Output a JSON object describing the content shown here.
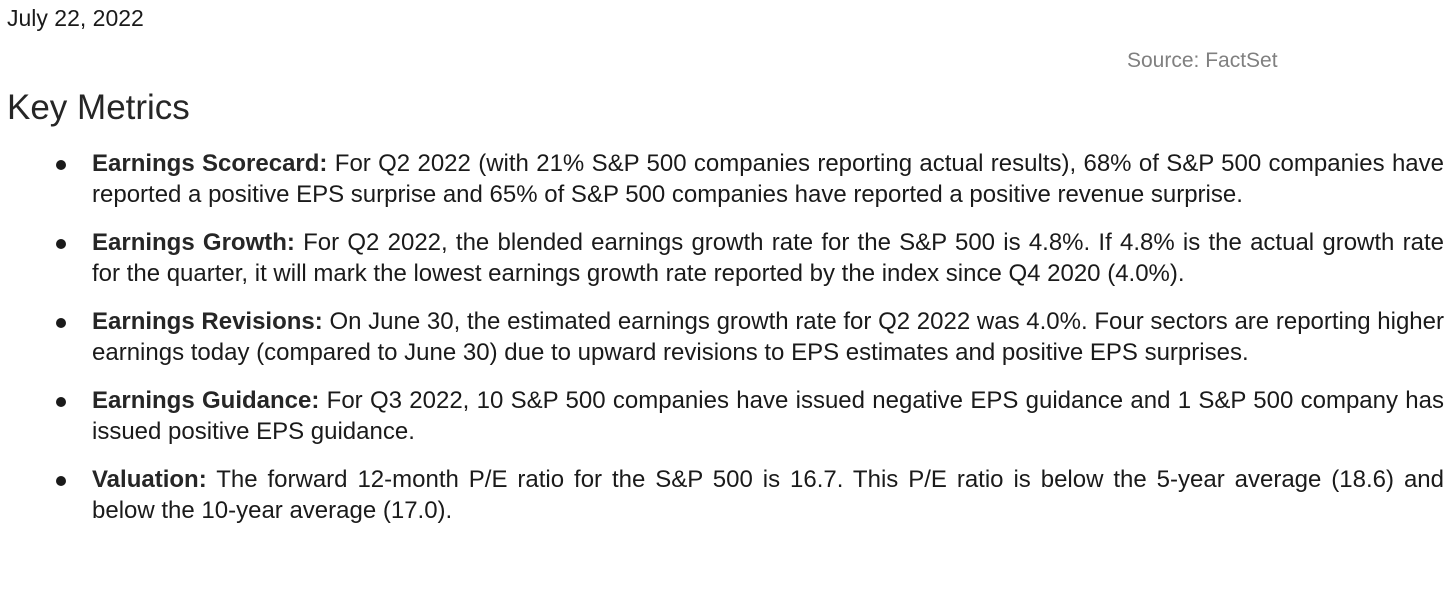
{
  "date": "July 22, 2022",
  "source": "Source: FactSet",
  "heading": "Key Metrics",
  "metrics": [
    {
      "label": "Earnings Scorecard:",
      "text": " For Q2 2022 (with 21% S&P 500 companies reporting actual results), 68% of S&P 500 companies have reported a positive EPS surprise and 65% of S&P 500 companies have reported a positive revenue surprise."
    },
    {
      "label": "Earnings Growth:",
      "text": " For Q2 2022, the blended earnings growth rate for the S&P 500 is 4.8%. If 4.8% is the actual growth rate for the quarter, it will mark the lowest earnings growth rate reported by the index since Q4 2020 (4.0%)."
    },
    {
      "label": "Earnings Revisions:",
      "text": " On June 30, the estimated earnings growth rate for Q2 2022 was 4.0%. Four sectors are reporting higher earnings today (compared to June 30) due to upward revisions to EPS estimates and positive EPS surprises."
    },
    {
      "label": "Earnings Guidance:",
      "text": " For Q3 2022, 10 S&P 500 companies have issued negative EPS guidance and 1 S&P 500 company has issued positive EPS guidance."
    },
    {
      "label": "Valuation:",
      "text": " The forward 12-month P/E ratio for the S&P 500 is 16.7. This P/E ratio is below the 5-year average (18.6) and below the 10-year average (17.0)."
    }
  ]
}
